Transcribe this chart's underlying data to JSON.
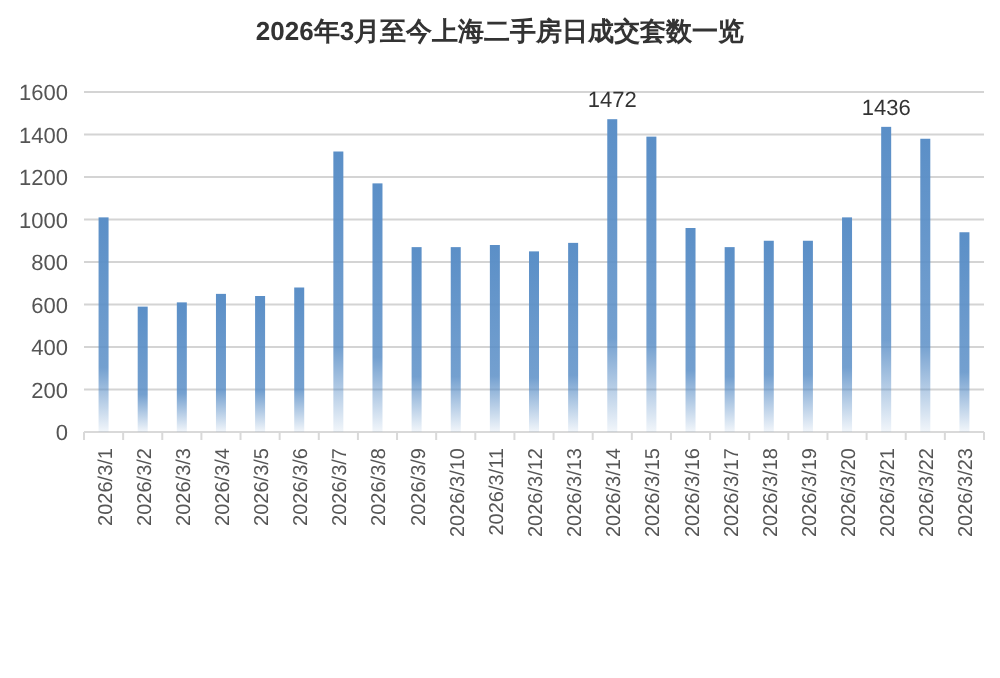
{
  "chart_data": {
    "type": "bar",
    "title": "2026年3月至今上海二手房日成交套数一览",
    "categories": [
      "2026/3/1",
      "2026/3/2",
      "2026/3/3",
      "2026/3/4",
      "2026/3/5",
      "2026/3/6",
      "2026/3/7",
      "2026/3/8",
      "2026/3/9",
      "2026/3/10",
      "2026/3/11",
      "2026/3/12",
      "2026/3/13",
      "2026/3/14",
      "2026/3/15",
      "2026/3/16",
      "2026/3/17",
      "2026/3/18",
      "2026/3/19",
      "2026/3/20",
      "2026/3/21",
      "2026/3/22",
      "2026/3/23"
    ],
    "values": [
      1010,
      590,
      610,
      650,
      640,
      680,
      1320,
      1170,
      870,
      870,
      880,
      850,
      890,
      1472,
      1390,
      960,
      870,
      900,
      900,
      1010,
      1436,
      1380,
      940
    ],
    "value_labels": [
      null,
      null,
      null,
      null,
      null,
      null,
      null,
      null,
      null,
      null,
      null,
      null,
      null,
      "1472",
      null,
      null,
      null,
      null,
      null,
      null,
      "1436",
      null,
      null
    ],
    "color": "#5b8fc7",
    "ylim": [
      0,
      1600
    ],
    "yticks": [
      0,
      200,
      400,
      600,
      800,
      1000,
      1200,
      1400,
      1600
    ],
    "grid": "y"
  }
}
